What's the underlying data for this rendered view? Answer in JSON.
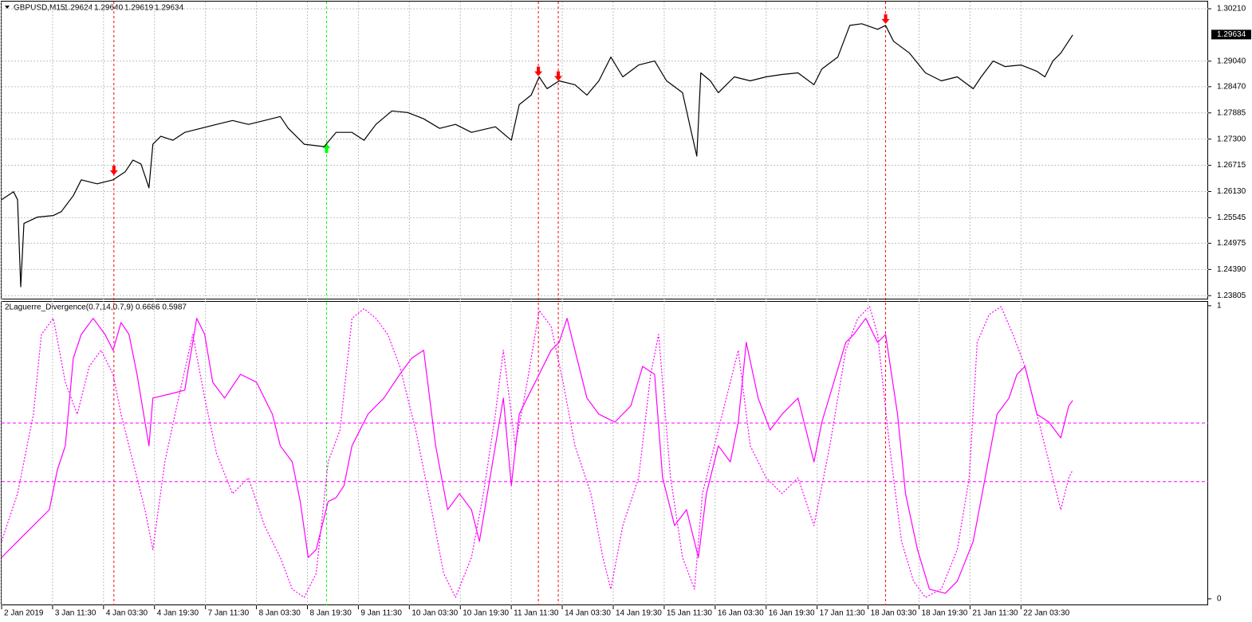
{
  "chart_data": [
    {
      "type": "line",
      "title": "GBPUSD,M15",
      "header_values": [
        "1.29624",
        "1.29640",
        "1.29619",
        "1.29634"
      ],
      "xlim": [
        0,
        1515
      ],
      "ylim": [
        1.2372,
        1.3037
      ],
      "yticks": [
        {
          "value": 1.3021,
          "label": "1.30210"
        },
        {
          "value": 1.2904,
          "label": "1.29040"
        },
        {
          "value": 1.2847,
          "label": "1.28470"
        },
        1.27885,
        {
          "value": 1.273,
          "label": "1.27300"
        },
        1.26715,
        {
          "value": 1.2613,
          "label": "1.26130"
        },
        1.25545,
        1.24975,
        {
          "value": 1.2439,
          "label": "1.24390"
        },
        1.23805
      ],
      "last_price": 1.29634,
      "grid": true,
      "series": [
        {
          "color": "#000000",
          "style": "solid",
          "x": [
            0,
            15,
            20,
            24,
            28,
            45,
            65,
            75,
            90,
            100,
            120,
            140,
            155,
            165,
            175,
            185,
            190,
            200,
            215,
            230,
            250,
            270,
            290,
            310,
            330,
            350,
            360,
            380,
            405,
            420,
            440,
            455,
            470,
            490,
            510,
            530,
            550,
            570,
            590,
            620,
            640,
            650,
            665,
            675,
            685,
            700,
            720,
            735,
            750,
            765,
            780,
            800,
            820,
            835,
            855,
            865,
            873,
            878,
            890,
            900,
            920,
            940,
            960,
            980,
            1000,
            1020,
            1030,
            1050,
            1065,
            1080,
            1100,
            1110,
            1120,
            1140,
            1160,
            1180,
            1200,
            1220,
            1230,
            1245,
            1260,
            1280,
            1300,
            1310,
            1320,
            1330,
            1345
          ],
          "values": [
            1.25948,
            1.26124,
            1.25948,
            1.24002,
            1.25417,
            1.25558,
            1.25594,
            1.25682,
            1.26036,
            1.2639,
            1.26301,
            1.2639,
            1.26567,
            1.26832,
            1.26744,
            1.26213,
            1.27186,
            1.27363,
            1.27274,
            1.27451,
            1.2754,
            1.27628,
            1.27716,
            1.27628,
            1.27716,
            1.27805,
            1.2754,
            1.27186,
            1.27133,
            1.27451,
            1.27451,
            1.27274,
            1.27628,
            1.27929,
            1.27893,
            1.27752,
            1.2754,
            1.27628,
            1.27451,
            1.27575,
            1.27274,
            1.2807,
            1.28283,
            1.28689,
            1.28424,
            1.28601,
            1.28513,
            1.28283,
            1.28601,
            1.29132,
            1.28689,
            1.28955,
            1.29043,
            1.28601,
            1.28336,
            1.2754,
            1.2692,
            1.28778,
            1.28601,
            1.28336,
            1.28689,
            1.28601,
            1.28689,
            1.28743,
            1.28778,
            1.28513,
            1.28866,
            1.29132,
            1.29839,
            1.29875,
            1.29751,
            1.29839,
            1.29485,
            1.2922,
            1.28778,
            1.28601,
            1.28689,
            1.28424,
            1.28689,
            1.29043,
            1.28919,
            1.28955,
            1.28813,
            1.28689,
            1.29043,
            1.2922,
            1.29627
          ]
        }
      ],
      "signals": [
        {
          "x": 141,
          "y": 1.26602,
          "color": "#ff0000",
          "marker": "arrow-down"
        },
        {
          "x": 408,
          "y": 1.27097,
          "color": "#00ff00",
          "marker": "arrow-up"
        },
        {
          "x": 674,
          "y": 1.28813,
          "color": "#ff0000",
          "marker": "arrow-down"
        },
        {
          "x": 699,
          "y": 1.28707,
          "color": "#ff0000",
          "marker": "arrow-down"
        },
        {
          "x": 1110,
          "y": 1.29981,
          "color": "#ff0000",
          "marker": "arrow-down"
        }
      ]
    },
    {
      "type": "line",
      "title": "2Laguerre_Divergence(0.7,14,0.7,9) 0.6686 0.5987",
      "xlim": [
        0,
        1515
      ],
      "ylim": [
        -0.022,
        1.016
      ],
      "yticks": [
        0,
        1
      ],
      "levels": [
        0.4,
        0.6
      ],
      "level_color": "#ff00ff",
      "grid": true,
      "xticks": [
        {
          "value": 0,
          "label": "2 Jan 2019"
        },
        {
          "value": 64,
          "label": "3 Jan 11:30"
        },
        {
          "value": 128,
          "label": "4 Jan 03:30"
        },
        {
          "value": 192,
          "label": "4 Jan 19:30"
        },
        {
          "value": 256,
          "label": "7 Jan 11:30"
        },
        {
          "value": 320,
          "label": "8 Jan 03:30"
        },
        {
          "value": 384,
          "label": "8 Jan 19:30"
        },
        {
          "value": 448,
          "label": "9 Jan 11:30"
        },
        {
          "value": 512,
          "label": "10 Jan 03:30"
        },
        {
          "value": 576,
          "label": "10 Jan 19:30"
        },
        {
          "value": 640,
          "label": "11 Jan 11:30"
        },
        {
          "value": 704,
          "label": "14 Jan 03:30"
        },
        {
          "value": 768,
          "label": "14 Jan 19:30"
        },
        {
          "value": 832,
          "label": "15 Jan 11:30"
        },
        {
          "value": 896,
          "label": "16 Jan 03:30"
        },
        {
          "value": 960,
          "label": "16 Jan 19:30"
        },
        {
          "value": 1024,
          "label": "17 Jan 11:30"
        },
        {
          "value": 1088,
          "label": "18 Jan 03:30"
        },
        {
          "value": 1152,
          "label": "18 Jan 19:30"
        },
        {
          "value": 1216,
          "label": "21 Jan 11:30"
        },
        {
          "value": 1280,
          "label": "22 Jan 03:30"
        }
      ],
      "series": [
        {
          "color": "#ff00ff",
          "style": "solid",
          "x": [
            0,
            20,
            40,
            60,
            70,
            80,
            90,
            100,
            115,
            130,
            140,
            150,
            160,
            170,
            185,
            190,
            210,
            230,
            245,
            255,
            265,
            280,
            300,
            320,
            340,
            350,
            365,
            375,
            385,
            395,
            410,
            420,
            430,
            440,
            460,
            480,
            500,
            515,
            530,
            545,
            560,
            575,
            590,
            600,
            610,
            620,
            630,
            640,
            650,
            660,
            675,
            690,
            700,
            710,
            720,
            735,
            750,
            770,
            790,
            805,
            820,
            830,
            845,
            860,
            875,
            885,
            900,
            915,
            925,
            935,
            950,
            965,
            980,
            1000,
            1020,
            1030,
            1045,
            1060,
            1070,
            1085,
            1100,
            1110,
            1125,
            1135,
            1150,
            1165,
            1185,
            1200,
            1220,
            1235,
            1250,
            1265,
            1275,
            1285,
            1300,
            1315,
            1330,
            1340,
            1345
          ],
          "values": [
            0.141,
            0.196,
            0.25,
            0.304,
            0.44,
            0.522,
            0.821,
            0.902,
            0.957,
            0.902,
            0.848,
            0.943,
            0.902,
            0.766,
            0.522,
            0.685,
            0.698,
            0.712,
            0.957,
            0.902,
            0.739,
            0.685,
            0.766,
            0.739,
            0.63,
            0.522,
            0.467,
            0.332,
            0.141,
            0.168,
            0.332,
            0.345,
            0.386,
            0.522,
            0.63,
            0.685,
            0.766,
            0.821,
            0.848,
            0.522,
            0.304,
            0.359,
            0.304,
            0.196,
            0.359,
            0.522,
            0.685,
            0.386,
            0.63,
            0.685,
            0.766,
            0.848,
            0.875,
            0.957,
            0.848,
            0.685,
            0.63,
            0.603,
            0.658,
            0.793,
            0.766,
            0.413,
            0.25,
            0.304,
            0.141,
            0.359,
            0.522,
            0.467,
            0.603,
            0.875,
            0.685,
            0.576,
            0.63,
            0.685,
            0.467,
            0.603,
            0.739,
            0.875,
            0.902,
            0.957,
            0.875,
            0.902,
            0.63,
            0.359,
            0.168,
            0.033,
            0.019,
            0.06,
            0.196,
            0.413,
            0.63,
            0.685,
            0.766,
            0.793,
            0.63,
            0.603,
            0.549,
            0.658,
            0.677
          ]
        },
        {
          "color": "#ff00ff",
          "style": "dotted",
          "x": [
            0,
            20,
            40,
            50,
            65,
            80,
            95,
            110,
            125,
            140,
            150,
            165,
            180,
            190,
            205,
            220,
            240,
            255,
            270,
            290,
            310,
            330,
            350,
            365,
            380,
            395,
            410,
            425,
            440,
            455,
            470,
            485,
            500,
            520,
            540,
            555,
            570,
            590,
            605,
            620,
            630,
            645,
            660,
            675,
            690,
            705,
            720,
            740,
            755,
            765,
            780,
            800,
            815,
            825,
            840,
            855,
            870,
            880,
            895,
            910,
            925,
            940,
            960,
            980,
            1000,
            1020,
            1040,
            1060,
            1075,
            1090,
            1100,
            1115,
            1130,
            1145,
            1160,
            1180,
            1200,
            1215,
            1225,
            1240,
            1255,
            1270,
            1285,
            1300,
            1315,
            1330,
            1340,
            1345
          ],
          "values": [
            0.196,
            0.359,
            0.63,
            0.902,
            0.957,
            0.739,
            0.63,
            0.793,
            0.848,
            0.766,
            0.63,
            0.467,
            0.304,
            0.168,
            0.467,
            0.658,
            0.902,
            0.685,
            0.495,
            0.359,
            0.413,
            0.25,
            0.141,
            0.033,
            0.005,
            0.087,
            0.467,
            0.576,
            0.957,
            0.99,
            0.957,
            0.902,
            0.793,
            0.576,
            0.304,
            0.087,
            0.005,
            0.141,
            0.359,
            0.63,
            0.848,
            0.522,
            0.739,
            0.984,
            0.929,
            0.739,
            0.522,
            0.359,
            0.141,
            0.033,
            0.25,
            0.413,
            0.766,
            0.902,
            0.413,
            0.141,
            0.033,
            0.359,
            0.522,
            0.685,
            0.848,
            0.522,
            0.413,
            0.359,
            0.413,
            0.25,
            0.522,
            0.848,
            0.957,
            0.997,
            0.902,
            0.522,
            0.196,
            0.06,
            0.005,
            0.033,
            0.168,
            0.413,
            0.875,
            0.97,
            0.997,
            0.902,
            0.793,
            0.63,
            0.467,
            0.304,
            0.413,
            0.44
          ]
        }
      ]
    }
  ]
}
